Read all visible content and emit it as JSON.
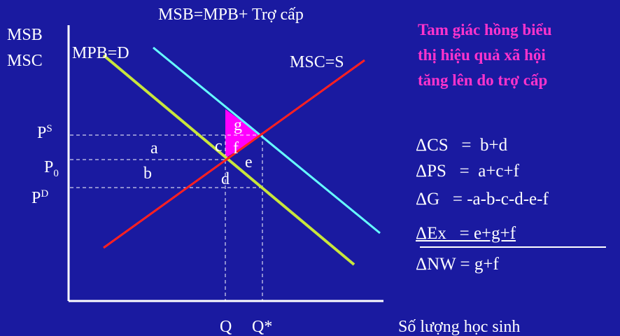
{
  "title": "MSB=MPB+ Trợ cấp",
  "y_axis": {
    "line1": "MSB",
    "line2": "MSC"
  },
  "x_axis_label": "Số lượng học sinh",
  "curves": {
    "mpb": {
      "label": "MPB=D",
      "color": "#c8e63c"
    },
    "msb": {
      "color": "#66ffff"
    },
    "msc": {
      "label": "MSC=S",
      "color": "#ff2020"
    }
  },
  "prices": {
    "ps_base": "P",
    "ps_sup": "S",
    "p0_base": "P",
    "p0_sub": "0",
    "pd_base": "P",
    "pd_sup": "D"
  },
  "quantities": {
    "q": "Q",
    "q_star": "Q*"
  },
  "areas": {
    "a": "a",
    "b": "b",
    "c": "c",
    "d": "d",
    "e": "e",
    "f": "f",
    "g": "g"
  },
  "triangle_color": "#ff00ff",
  "note": {
    "line1": "Tam giác hồng biểu",
    "line2": "thị hiệu quả xã hội",
    "line3": "tăng lên do trợ cấp"
  },
  "equations": [
    "ΔCS   =  b+d",
    "ΔPS   =  a+c+f",
    "ΔG   = -a-b-c-d-e-f",
    "ΔEx   = e+g+f",
    "ΔNW = g+f"
  ]
}
